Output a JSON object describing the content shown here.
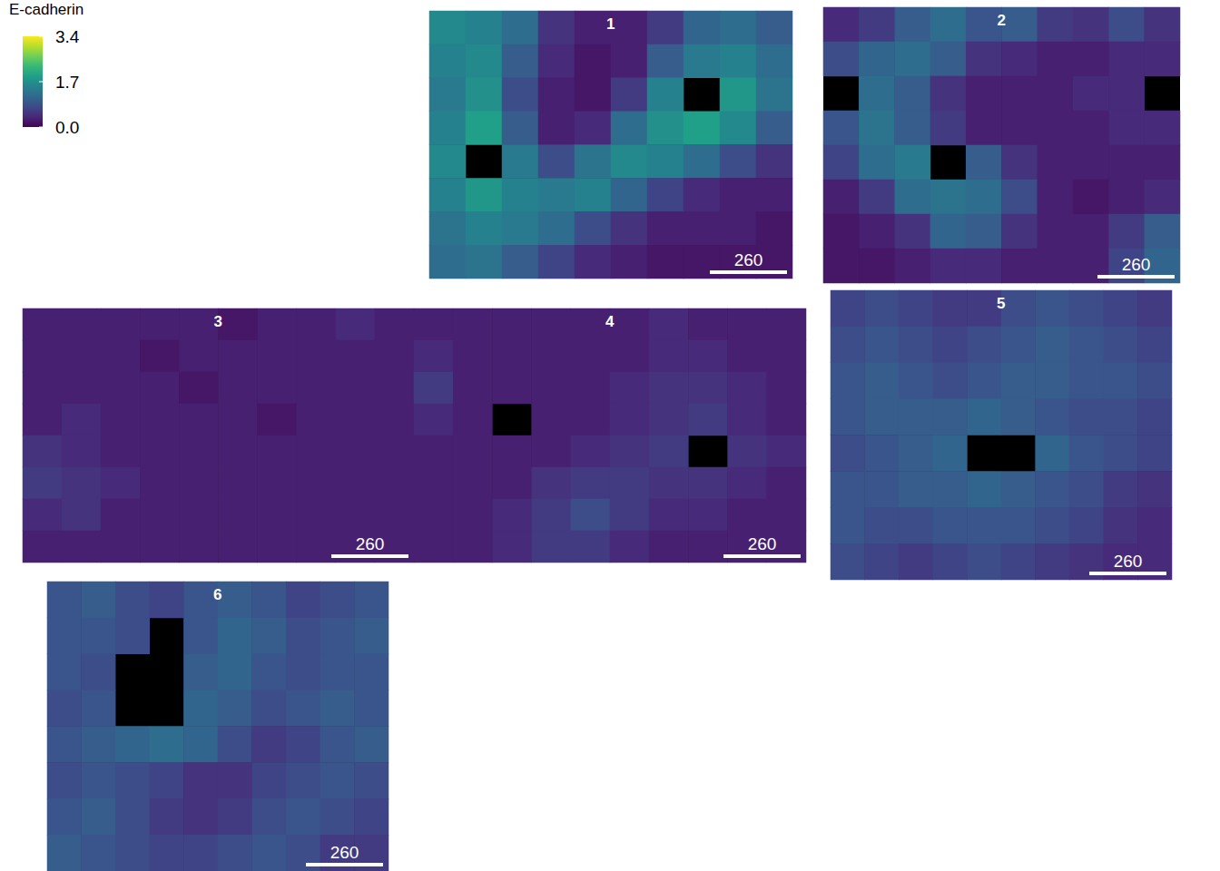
{
  "chart_data": {
    "type": "heatmap",
    "tick_labels": false,
    "colorbar": {
      "title": "E-cadherin",
      "range": [
        0,
        3.4
      ],
      "ticks": [
        {
          "value": 0,
          "label": "0.0"
        },
        1.7,
        3.4
      ]
    },
    "panels": [
      {
        "label": "1",
        "scale_bar": 260,
        "cells": [
          [
            1.6,
            1.5,
            1.2,
            0.5,
            0.3,
            0.3,
            0.6,
            1.1,
            1.2,
            1.0
          ],
          [
            1.5,
            1.6,
            1.0,
            0.4,
            0.2,
            0.3,
            1.0,
            1.4,
            1.5,
            1.2
          ],
          [
            1.4,
            1.7,
            0.8,
            0.3,
            0.2,
            0.6,
            1.5,
            null,
            1.8,
            1.3
          ],
          [
            1.5,
            1.9,
            1.0,
            0.3,
            0.4,
            1.2,
            1.7,
            1.9,
            1.6,
            1.0
          ],
          [
            1.6,
            null,
            1.4,
            0.8,
            1.3,
            1.6,
            1.5,
            1.2,
            0.8,
            0.5
          ],
          [
            1.5,
            1.8,
            1.5,
            1.4,
            1.5,
            1.1,
            0.7,
            0.4,
            0.3,
            0.3
          ],
          [
            1.3,
            1.5,
            1.4,
            1.2,
            0.8,
            0.5,
            0.3,
            0.3,
            0.3,
            0.2
          ],
          [
            1.2,
            1.3,
            1.0,
            0.7,
            0.4,
            0.3,
            0.2,
            0.2,
            0.2,
            0.2
          ]
        ]
      },
      {
        "label": "2",
        "scale_bar": 260,
        "cells": [
          [
            0.4,
            0.6,
            1.0,
            1.2,
            0.9,
            1.0,
            0.6,
            0.5,
            0.8,
            0.5
          ],
          [
            0.8,
            1.1,
            1.2,
            1.0,
            0.5,
            0.4,
            0.3,
            0.3,
            0.4,
            0.4
          ],
          [
            null,
            1.2,
            1.0,
            0.5,
            0.3,
            0.3,
            0.3,
            0.4,
            0.4,
            null
          ],
          [
            0.9,
            1.3,
            1.0,
            0.6,
            0.3,
            0.3,
            0.3,
            0.3,
            0.4,
            0.4
          ],
          [
            0.7,
            1.2,
            1.4,
            null,
            1.0,
            0.5,
            0.3,
            0.3,
            0.3,
            0.3
          ],
          [
            0.3,
            0.6,
            1.2,
            1.3,
            1.2,
            0.8,
            0.3,
            0.2,
            0.3,
            0.4
          ],
          [
            0.2,
            0.3,
            0.5,
            1.1,
            1.0,
            0.5,
            0.3,
            0.3,
            0.6,
            1.0
          ],
          [
            0.2,
            0.2,
            0.3,
            0.4,
            0.4,
            0.3,
            0.3,
            0.3,
            0.7,
            1.1
          ]
        ]
      },
      {
        "label": "3",
        "scale_bar": 260,
        "cells": [
          [
            0.3,
            0.3,
            0.3,
            0.3,
            0.3,
            0.2,
            0.3,
            0.3,
            0.4,
            0.3
          ],
          [
            0.3,
            0.3,
            0.3,
            0.2,
            0.3,
            0.3,
            0.3,
            0.3,
            0.3,
            0.3
          ],
          [
            0.3,
            0.3,
            0.3,
            0.3,
            0.2,
            0.3,
            0.3,
            0.3,
            0.3,
            0.3
          ],
          [
            0.3,
            0.4,
            0.3,
            0.3,
            0.3,
            0.3,
            0.2,
            0.3,
            0.3,
            0.3
          ],
          [
            0.5,
            0.4,
            0.3,
            0.3,
            0.3,
            0.3,
            0.3,
            0.3,
            0.3,
            0.3
          ],
          [
            0.6,
            0.5,
            0.4,
            0.3,
            0.3,
            0.3,
            0.3,
            0.3,
            0.3,
            0.3
          ],
          [
            0.4,
            0.5,
            0.3,
            0.3,
            0.3,
            0.3,
            0.3,
            0.3,
            0.3,
            0.3
          ],
          [
            0.3,
            0.3,
            0.3,
            0.3,
            0.3,
            0.3,
            0.3,
            0.3,
            0.3,
            0.3
          ]
        ]
      },
      {
        "label": "4",
        "scale_bar": 260,
        "cells": [
          [
            0.3,
            0.3,
            0.3,
            0.3,
            0.3,
            0.3,
            0.4,
            0.3,
            0.3,
            0.3
          ],
          [
            0.4,
            0.3,
            0.3,
            0.3,
            0.3,
            0.3,
            0.4,
            0.4,
            0.3,
            0.3
          ],
          [
            0.6,
            0.3,
            0.3,
            0.3,
            0.3,
            0.4,
            0.5,
            0.5,
            0.4,
            0.3
          ],
          [
            0.4,
            0.3,
            null,
            0.3,
            0.3,
            0.4,
            0.5,
            0.6,
            0.4,
            0.3
          ],
          [
            0.3,
            0.3,
            0.3,
            0.3,
            0.4,
            0.5,
            0.6,
            null,
            0.5,
            0.4
          ],
          [
            0.3,
            0.3,
            0.3,
            0.5,
            0.6,
            0.6,
            0.5,
            0.5,
            0.4,
            0.3
          ],
          [
            0.3,
            0.3,
            0.4,
            0.6,
            0.8,
            0.6,
            0.4,
            0.4,
            0.3,
            0.3
          ],
          [
            0.3,
            0.3,
            0.4,
            0.6,
            0.6,
            0.4,
            0.3,
            0.3,
            0.3,
            0.3
          ]
        ]
      },
      {
        "label": "5",
        "scale_bar": 260,
        "cells": [
          [
            0.7,
            0.8,
            0.7,
            0.6,
            0.6,
            0.8,
            0.9,
            0.8,
            0.7,
            0.6
          ],
          [
            0.8,
            0.9,
            0.8,
            0.7,
            0.8,
            0.9,
            1.0,
            0.9,
            0.8,
            0.7
          ],
          [
            0.9,
            1.0,
            0.9,
            0.8,
            0.9,
            1.0,
            1.0,
            0.9,
            0.9,
            0.8
          ],
          [
            0.9,
            1.0,
            1.0,
            1.0,
            1.1,
            1.0,
            0.9,
            0.8,
            0.8,
            0.7
          ],
          [
            0.8,
            0.9,
            1.0,
            1.1,
            null,
            null,
            1.1,
            0.9,
            0.8,
            0.7
          ],
          [
            0.9,
            0.9,
            1.0,
            1.0,
            1.1,
            1.0,
            0.9,
            0.8,
            0.6,
            0.5
          ],
          [
            0.9,
            0.8,
            0.8,
            0.9,
            0.9,
            0.9,
            0.8,
            0.7,
            0.5,
            0.4
          ],
          [
            0.8,
            0.7,
            0.6,
            0.7,
            0.8,
            0.7,
            0.6,
            0.5,
            0.4,
            0.4
          ]
        ]
      },
      {
        "label": "6",
        "scale_bar": 260,
        "cells": [
          [
            0.9,
            1.0,
            0.8,
            0.7,
            0.9,
            1.0,
            0.9,
            0.7,
            0.8,
            0.9
          ],
          [
            0.9,
            0.9,
            0.8,
            null,
            0.9,
            1.1,
            1.0,
            0.8,
            0.9,
            1.0
          ],
          [
            0.9,
            0.8,
            null,
            null,
            1.0,
            1.1,
            0.9,
            0.8,
            0.9,
            0.9
          ],
          [
            0.8,
            0.9,
            null,
            null,
            1.1,
            1.0,
            0.8,
            0.9,
            1.0,
            0.9
          ],
          [
            0.9,
            1.0,
            1.1,
            1.2,
            1.1,
            0.8,
            0.6,
            0.7,
            0.9,
            1.0
          ],
          [
            0.8,
            0.9,
            0.8,
            0.7,
            0.5,
            0.5,
            0.7,
            0.8,
            0.9,
            0.8
          ],
          [
            0.9,
            1.0,
            0.8,
            0.6,
            0.5,
            0.6,
            0.8,
            0.9,
            0.8,
            0.7
          ],
          [
            1.0,
            0.9,
            0.8,
            0.7,
            0.7,
            0.8,
            0.9,
            0.8,
            0.6,
            0.6
          ]
        ]
      }
    ]
  }
}
